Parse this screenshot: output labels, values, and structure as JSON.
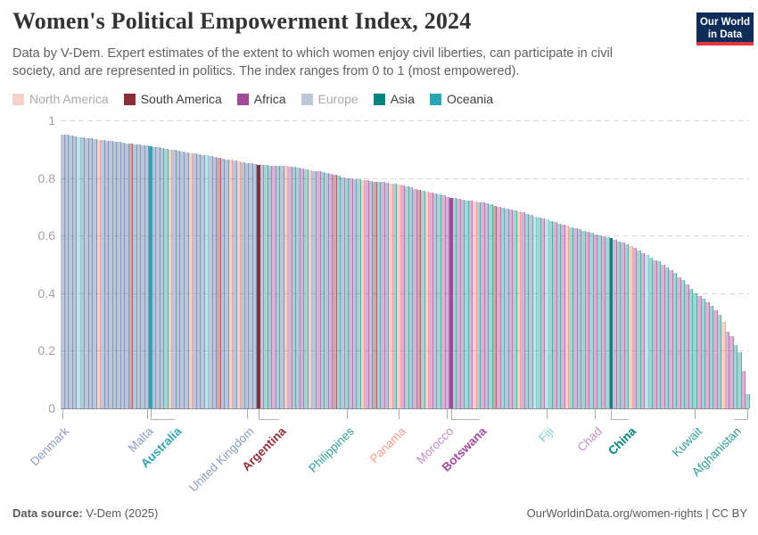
{
  "header": {
    "title": "Women's Political Empowerment Index, 2024",
    "subtitle": "Data by V-Dem. Expert estimates of the extent to which women enjoy civil liberties, can participate in civil society, and are represented in politics. The index ranges from 0 to 1 (most empowered)."
  },
  "logo": {
    "line1": "Our World",
    "line2": "in Data"
  },
  "footer": {
    "source_label": "Data source:",
    "source_value": " V-Dem (2025)",
    "right": "OurWorldinData.org/women-rights | CC BY"
  },
  "chart_data": {
    "type": "bar",
    "title": "Women's Political Empowerment Index, 2024",
    "ylim": [
      0,
      1
    ],
    "yticks": [
      1,
      0.8,
      0.6,
      0.4,
      0.2,
      0
    ],
    "grid": "horizontal-dashed",
    "legend_position": "top",
    "legend": [
      {
        "label": "North America",
        "code": "N",
        "muted": true
      },
      {
        "label": "South America",
        "code": "S",
        "muted": false
      },
      {
        "label": "Africa",
        "code": "F",
        "muted": false
      },
      {
        "label": "Europe",
        "code": "E",
        "muted": true
      },
      {
        "label": "Asia",
        "code": "A",
        "muted": false
      },
      {
        "label": "Oceania",
        "code": "O",
        "muted": false
      }
    ],
    "colors": {
      "N": {
        "rgb": [
          229,
          110,
          90
        ],
        "alpha": 0.32,
        "full": "#E56E5A"
      },
      "S": {
        "rgb": [
          139,
          46,
          56
        ],
        "alpha": 0.42,
        "full": "#8B2E38"
      },
      "F": {
        "rgb": [
          163,
          75,
          155
        ],
        "alpha": 0.42,
        "full": "#A34B9B"
      },
      "E": {
        "rgb": [
          76,
          106,
          156
        ],
        "alpha": 0.38,
        "full": "#4C6A9C"
      },
      "A": {
        "rgb": [
          0,
          132,
          126
        ],
        "alpha": 0.35,
        "full": "#00847E"
      },
      "O": {
        "rgb": [
          44,
          166,
          180
        ],
        "alpha": 0.3,
        "full": "#2CA6B4"
      }
    },
    "bars": {
      "values": [
        0.952,
        0.95,
        0.947,
        0.945,
        0.942,
        0.94,
        0.938,
        0.937,
        0.935,
        0.933,
        0.932,
        0.93,
        0.928,
        0.926,
        0.925,
        0.923,
        0.921,
        0.919,
        0.917,
        0.916,
        0.914,
        0.912,
        0.91,
        0.908,
        0.906,
        0.903,
        0.901,
        0.899,
        0.897,
        0.894,
        0.892,
        0.89,
        0.887,
        0.885,
        0.882,
        0.88,
        0.878,
        0.875,
        0.873,
        0.87,
        0.868,
        0.865,
        0.863,
        0.86,
        0.858,
        0.855,
        0.853,
        0.85,
        0.848,
        0.845,
        0.844,
        0.844,
        0.843,
        0.843,
        0.842,
        0.841,
        0.841,
        0.84,
        0.838,
        0.835,
        0.833,
        0.83,
        0.828,
        0.825,
        0.823,
        0.82,
        0.817,
        0.813,
        0.81,
        0.807,
        0.803,
        0.8,
        0.798,
        0.797,
        0.795,
        0.793,
        0.792,
        0.79,
        0.788,
        0.786,
        0.785,
        0.783,
        0.781,
        0.78,
        0.778,
        0.774,
        0.771,
        0.767,
        0.763,
        0.76,
        0.756,
        0.753,
        0.749,
        0.746,
        0.742,
        0.739,
        0.735,
        0.732,
        0.73,
        0.728,
        0.725,
        0.723,
        0.721,
        0.719,
        0.716,
        0.714,
        0.711,
        0.708,
        0.704,
        0.701,
        0.698,
        0.695,
        0.691,
        0.688,
        0.684,
        0.68,
        0.676,
        0.672,
        0.667,
        0.663,
        0.659,
        0.655,
        0.651,
        0.646,
        0.642,
        0.638,
        0.634,
        0.63,
        0.626,
        0.622,
        0.617,
        0.613,
        0.609,
        0.605,
        0.601,
        0.598,
        0.594,
        0.59,
        0.585,
        0.58,
        0.575,
        0.57,
        0.565,
        0.557,
        0.548,
        0.54,
        0.532,
        0.523,
        0.515,
        0.51,
        0.5,
        0.49,
        0.48,
        0.47,
        0.455,
        0.445,
        0.43,
        0.415,
        0.4,
        0.39,
        0.38,
        0.37,
        0.355,
        0.34,
        0.325,
        0.3,
        0.265,
        0.25,
        0.22,
        0.195,
        0.13,
        0.05
      ],
      "continents": "EEEEOEEEENEEEEEEESEEEEOEEEANEEEENEEEOEESEENENEEEESEAEFAENFAEFANEFAEFSAEAFEANFESAFENANFAEFSANFEAFFFAFEAFNAFEASFAEFANFAEOAFOAFAFNAFEAFAFAFAAFAFANFAFOAFAFAFAFAFAAFAFAFANFFAAFA",
      "highlights": {
        "22": "Australia",
        "49": "Argentina",
        "97": "Botswana",
        "137": "China"
      }
    },
    "x_labels": [
      {
        "label": "Denmark",
        "index": 0,
        "color": "#8C9CC6",
        "bold": false,
        "offset": 0
      },
      {
        "label": "Malta",
        "index": 21,
        "color": "#8C9CC6",
        "bold": false,
        "offset": 0
      },
      {
        "label": "Australia",
        "index": 22,
        "color": "#2CA6B4",
        "bold": true,
        "offset": 27
      },
      {
        "label": "United Kingdom",
        "index": 46,
        "color": "#8C9CC6",
        "bold": false,
        "offset": 0
      },
      {
        "label": "Argentina",
        "index": 49,
        "color": "#96303C",
        "bold": true,
        "offset": 23
      },
      {
        "label": "Philippines",
        "index": 71,
        "color": "#339E97",
        "bold": false,
        "offset": 0
      },
      {
        "label": "Panama",
        "index": 84,
        "color": "#F49D8D",
        "bold": false,
        "offset": 0
      },
      {
        "label": "Morocco",
        "index": 96,
        "color": "#C48FC7",
        "bold": false,
        "offset": 0
      },
      {
        "label": "Botswana",
        "index": 97,
        "color": "#A34B9B",
        "bold": true,
        "offset": 32
      },
      {
        "label": "Fiji",
        "index": 121,
        "color": "#7FCFDB",
        "bold": false,
        "offset": 0
      },
      {
        "label": "Chad",
        "index": 133,
        "color": "#C48FC7",
        "bold": false,
        "offset": 0
      },
      {
        "label": "China",
        "index": 137,
        "color": "#00847E",
        "bold": true,
        "offset": 20
      },
      {
        "label": "Kuwait",
        "index": 158,
        "color": "#339E97",
        "bold": false,
        "offset": 0
      },
      {
        "label": "Afghanistan",
        "index": 171,
        "color": "#2B9A93",
        "bold": false,
        "offset": -15
      }
    ]
  }
}
